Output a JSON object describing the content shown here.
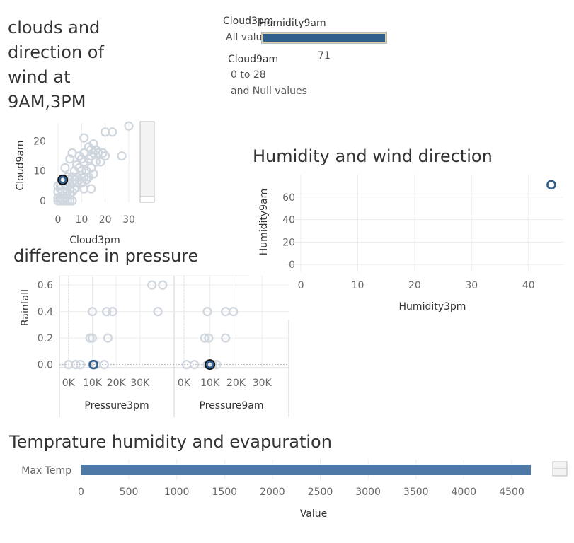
{
  "clouds_title": [
    "clouds and",
    "direction of",
    "wind at",
    "9AM,3PM"
  ],
  "filters": {
    "cloud3pm": {
      "label": "Cloud3pm",
      "value": "All values"
    },
    "humidity9am": {
      "label": "Humidity9am",
      "value": "71",
      "fill_color": "#2f5d8c"
    },
    "cloud9am": {
      "label": "Cloud9am",
      "range": "0 to 28",
      "null_note": "and Null values"
    }
  },
  "humidity_title": "Humidity and wind direction",
  "pressure_title": "difference in pressure",
  "temp_title": "Temprature humidity and evapuration",
  "colors": {
    "accent": "#2f5d8c",
    "bar": "#4e79a7",
    "point": "#cfd6de"
  },
  "chart_data": [
    {
      "type": "scatter",
      "xlabel": "Cloud3pm",
      "ylabel": "Cloud9am",
      "xlim": [
        0,
        33
      ],
      "ylim": [
        0,
        26
      ],
      "xticks": [
        0,
        10,
        20,
        30
      ],
      "yticks": [
        0,
        10,
        20
      ],
      "points": [
        [
          0,
          0
        ],
        [
          1,
          0
        ],
        [
          2,
          0
        ],
        [
          3,
          0
        ],
        [
          4,
          0
        ],
        [
          5,
          0
        ],
        [
          6,
          0
        ],
        [
          0,
          1
        ],
        [
          1,
          1
        ],
        [
          3,
          1
        ],
        [
          5,
          2
        ],
        [
          0,
          3
        ],
        [
          2,
          3
        ],
        [
          4,
          3
        ],
        [
          6,
          3
        ],
        [
          1,
          4
        ],
        [
          3,
          4
        ],
        [
          5,
          4
        ],
        [
          7,
          4
        ],
        [
          11,
          4
        ],
        [
          14,
          4
        ],
        [
          1,
          5
        ],
        [
          4,
          5
        ],
        [
          0,
          5
        ],
        [
          6,
          6
        ],
        [
          8,
          6
        ],
        [
          10,
          6
        ],
        [
          3,
          7
        ],
        [
          5,
          7
        ],
        [
          7,
          7
        ],
        [
          9,
          7
        ],
        [
          12,
          7
        ],
        [
          4,
          8
        ],
        [
          6,
          8
        ],
        [
          8,
          8
        ],
        [
          11,
          8
        ],
        [
          13,
          8
        ],
        [
          15,
          9
        ],
        [
          7,
          10
        ],
        [
          10,
          10
        ],
        [
          12,
          10
        ],
        [
          14,
          11
        ],
        [
          9,
          11
        ],
        [
          3,
          11
        ],
        [
          8,
          12
        ],
        [
          11,
          13
        ],
        [
          16,
          13
        ],
        [
          18,
          13
        ],
        [
          10,
          14
        ],
        [
          13,
          14
        ],
        [
          5,
          14
        ],
        [
          9,
          15
        ],
        [
          14,
          15
        ],
        [
          17,
          16
        ],
        [
          19,
          16
        ],
        [
          20,
          15
        ],
        [
          6,
          16
        ],
        [
          11,
          16
        ],
        [
          15,
          16
        ],
        [
          13,
          18
        ],
        [
          15,
          19
        ],
        [
          20,
          23
        ],
        [
          11,
          21
        ],
        [
          23,
          23
        ],
        [
          27,
          15
        ],
        [
          30,
          25
        ],
        [
          14,
          17
        ],
        [
          16,
          17
        ]
      ],
      "highlight": [
        [
          2,
          7
        ]
      ]
    },
    {
      "type": "scatter",
      "xlabel": "Humidity3pm",
      "ylabel": "Humidity9am",
      "xlim": [
        -1,
        46
      ],
      "ylim": [
        -3,
        80
      ],
      "xticks": [
        0,
        10,
        20,
        30,
        40
      ],
      "yticks": [
        0,
        20,
        40,
        60
      ],
      "highlight": [
        [
          44,
          71
        ]
      ]
    },
    {
      "type": "scatter",
      "ylabel": "Rainfall",
      "ylim": [
        -0.05,
        0.67
      ],
      "yticks": [
        0.0,
        0.2,
        0.4,
        0.6
      ],
      "ytick_labels": [
        "0.0",
        "0.2",
        "0.4",
        "0.6"
      ],
      "xticks": [
        0,
        10000,
        20000,
        30000
      ],
      "xtick_labels": [
        "0K",
        "10K",
        "20K",
        "30K"
      ],
      "panels": [
        {
          "xlabel": "Pressure3pm",
          "xlim": [
            -3500,
            44000
          ],
          "points": [
            [
              0,
              0
            ],
            [
              3000,
              0
            ],
            [
              5000,
              0
            ],
            [
              10000,
              0
            ],
            [
              11500,
              0
            ],
            [
              15000,
              0
            ],
            [
              9000,
              0.2
            ],
            [
              10000,
              0.2
            ],
            [
              16500,
              0.2
            ],
            [
              10000,
              0.4
            ],
            [
              16000,
              0.4
            ],
            [
              18500,
              0.4
            ],
            [
              35000,
              0.6
            ],
            [
              39500,
              0.6
            ],
            [
              37500,
              0.4
            ]
          ],
          "highlight": [
            [
              10500,
              0
            ]
          ]
        },
        {
          "xlabel": "Pressure9am",
          "xlim": [
            -3500,
            40000
          ],
          "points": [
            [
              1000,
              0
            ],
            [
              4000,
              0
            ],
            [
              9000,
              0
            ],
            [
              11000,
              0
            ],
            [
              12500,
              0
            ],
            [
              8000,
              0.2
            ],
            [
              9500,
              0.2
            ],
            [
              16000,
              0.2
            ],
            [
              9000,
              0.4
            ],
            [
              16000,
              0.4
            ],
            [
              19000,
              0.4
            ]
          ],
          "highlight": [
            [
              10000,
              0
            ]
          ]
        }
      ]
    },
    {
      "type": "bar",
      "orientation": "horizontal",
      "categories": [
        "Max Temp"
      ],
      "values": [
        4700
      ],
      "xlabel": "Value",
      "xlim": [
        -40,
        4870
      ],
      "xticks": [
        0,
        500,
        1000,
        1500,
        2000,
        2500,
        3000,
        3500,
        4000,
        4500
      ]
    }
  ]
}
